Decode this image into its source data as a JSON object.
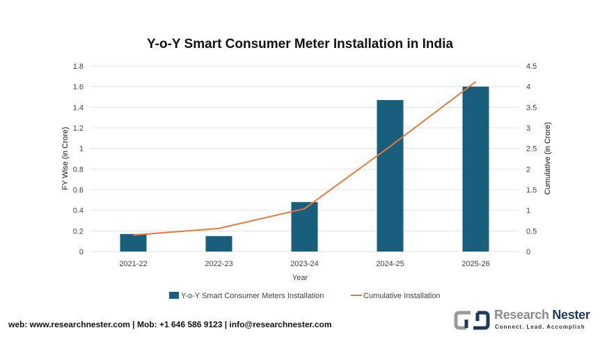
{
  "chart_data": {
    "type": "bar+line",
    "title": "Y-o-Y Smart Consumer Meter Installation in India",
    "xlabel": "Year",
    "ylabel": "FY Wise (in Crore)",
    "y2label": "Cumulative (in Crore)",
    "categories": [
      "2021-22",
      "2022-23",
      "2023-24",
      "2024-25",
      "2025-26"
    ],
    "ylim": [
      0,
      1.8
    ],
    "y2lim": [
      0,
      4.5
    ],
    "yticks": [
      "0",
      "0.2",
      "0.4",
      "0.6",
      "0.8",
      "1",
      "1.2",
      "1.4",
      "1.6",
      "1.8"
    ],
    "y2ticks": [
      "0",
      "0.5",
      "1",
      "1.5",
      "2",
      "2.5",
      "3",
      "3.5",
      "4",
      "4.5"
    ],
    "grid": true,
    "legend_position": "bottom",
    "series": [
      {
        "name": "Y-o-Y Smart Consumer Meters Installation",
        "type": "bar",
        "axis": "left",
        "color": "#1a5e7e",
        "values": [
          0.17,
          0.15,
          0.48,
          1.47,
          1.6
        ]
      },
      {
        "name": "Cumulative Installation",
        "type": "line",
        "axis": "right",
        "color": "#e8773a",
        "values": [
          0.4,
          0.56,
          1.04,
          2.55,
          4.12
        ]
      }
    ]
  },
  "footer": {
    "contact": "web: www.researchnester.com | Mob: +1 646 586 9123 | info@researchnester.com"
  },
  "logo": {
    "name_part1": "Research",
    "name_part2": "Nester",
    "tagline": "Connect. Lead. Accomplish"
  }
}
